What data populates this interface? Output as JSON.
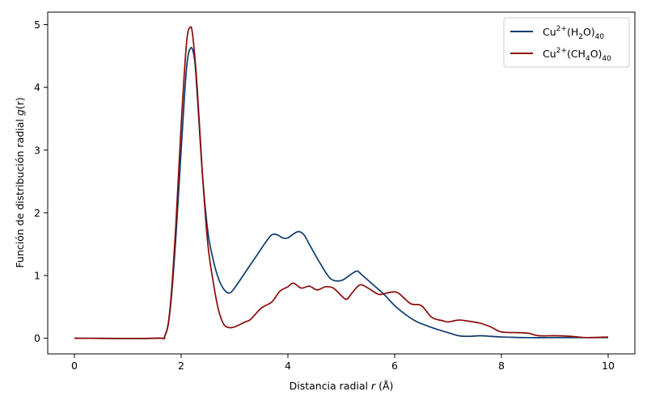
{
  "chart_data": {
    "type": "line",
    "xlabel_text": "Distancia radial ",
    "xlabel_var": "r",
    "xlabel_unit": " (Å)",
    "ylabel_text": "Función de distribución radial ",
    "ylabel_var": "g",
    "ylabel_arg": "(r)",
    "xlim": [
      -0.5,
      10.5
    ],
    "ylim": [
      -0.25,
      5.2
    ],
    "xticks": [
      0,
      2,
      4,
      6,
      8,
      10
    ],
    "yticks": [
      0,
      1,
      2,
      3,
      4,
      5
    ],
    "grid": false,
    "legend_position": "top-right",
    "series": [
      {
        "name": "Cu2+(H2O)40",
        "legend_base": "Cu",
        "legend_sup": "2+",
        "legend_mid": "(H",
        "legend_sub1": "2",
        "legend_mid2": "O)",
        "legend_sub2": "40",
        "legend_mid3": "",
        "legend_sub3": "",
        "color": "#0d3b6e",
        "points": [
          [
            0,
            0
          ],
          [
            1.5,
            0
          ],
          [
            1.7,
            0.05
          ],
          [
            1.8,
            0.5
          ],
          [
            1.9,
            1.6
          ],
          [
            2.0,
            3.0
          ],
          [
            2.1,
            4.3
          ],
          [
            2.18,
            4.63
          ],
          [
            2.25,
            4.45
          ],
          [
            2.3,
            3.9
          ],
          [
            2.4,
            2.6
          ],
          [
            2.5,
            1.7
          ],
          [
            2.6,
            1.25
          ],
          [
            2.7,
            0.95
          ],
          [
            2.8,
            0.78
          ],
          [
            2.9,
            0.72
          ],
          [
            3.0,
            0.8
          ],
          [
            3.2,
            1.05
          ],
          [
            3.4,
            1.3
          ],
          [
            3.6,
            1.55
          ],
          [
            3.7,
            1.65
          ],
          [
            3.8,
            1.65
          ],
          [
            3.9,
            1.6
          ],
          [
            4.0,
            1.6
          ],
          [
            4.1,
            1.66
          ],
          [
            4.2,
            1.7
          ],
          [
            4.3,
            1.65
          ],
          [
            4.4,
            1.5
          ],
          [
            4.6,
            1.2
          ],
          [
            4.8,
            0.95
          ],
          [
            5.0,
            0.92
          ],
          [
            5.2,
            1.03
          ],
          [
            5.3,
            1.07
          ],
          [
            5.4,
            1.0
          ],
          [
            5.6,
            0.85
          ],
          [
            5.8,
            0.7
          ],
          [
            6.0,
            0.52
          ],
          [
            6.2,
            0.38
          ],
          [
            6.4,
            0.27
          ],
          [
            6.6,
            0.2
          ],
          [
            6.8,
            0.14
          ],
          [
            7.0,
            0.09
          ],
          [
            7.2,
            0.04
          ],
          [
            7.4,
            0.03
          ],
          [
            7.6,
            0.04
          ],
          [
            7.8,
            0.03
          ],
          [
            8.0,
            0.02
          ],
          [
            8.5,
            0.01
          ],
          [
            9.0,
            0.01
          ],
          [
            10.0,
            0.01
          ]
        ]
      },
      {
        "name": "Cu2+(CH4O)40",
        "legend_base": "Cu",
        "legend_sup": "2+",
        "legend_mid": "(CH",
        "legend_sub1": "4",
        "legend_mid2": "O)",
        "legend_sub2": "40",
        "legend_mid3": "",
        "legend_sub3": "",
        "color": "#8b0a0a",
        "points": [
          [
            0,
            0
          ],
          [
            1.5,
            0
          ],
          [
            1.7,
            0.05
          ],
          [
            1.8,
            0.55
          ],
          [
            1.9,
            1.8
          ],
          [
            2.0,
            3.4
          ],
          [
            2.1,
            4.7
          ],
          [
            2.17,
            4.96
          ],
          [
            2.22,
            4.8
          ],
          [
            2.3,
            4.0
          ],
          [
            2.4,
            2.6
          ],
          [
            2.5,
            1.5
          ],
          [
            2.6,
            0.9
          ],
          [
            2.7,
            0.45
          ],
          [
            2.8,
            0.22
          ],
          [
            2.9,
            0.17
          ],
          [
            3.0,
            0.18
          ],
          [
            3.2,
            0.26
          ],
          [
            3.3,
            0.3
          ],
          [
            3.5,
            0.48
          ],
          [
            3.7,
            0.58
          ],
          [
            3.85,
            0.75
          ],
          [
            4.0,
            0.82
          ],
          [
            4.1,
            0.88
          ],
          [
            4.25,
            0.8
          ],
          [
            4.4,
            0.83
          ],
          [
            4.55,
            0.77
          ],
          [
            4.7,
            0.82
          ],
          [
            4.85,
            0.8
          ],
          [
            5.0,
            0.68
          ],
          [
            5.1,
            0.62
          ],
          [
            5.2,
            0.72
          ],
          [
            5.35,
            0.85
          ],
          [
            5.5,
            0.8
          ],
          [
            5.7,
            0.7
          ],
          [
            5.85,
            0.72
          ],
          [
            6.0,
            0.74
          ],
          [
            6.1,
            0.7
          ],
          [
            6.3,
            0.55
          ],
          [
            6.5,
            0.52
          ],
          [
            6.7,
            0.33
          ],
          [
            6.9,
            0.28
          ],
          [
            7.0,
            0.26
          ],
          [
            7.2,
            0.29
          ],
          [
            7.4,
            0.27
          ],
          [
            7.6,
            0.24
          ],
          [
            7.8,
            0.18
          ],
          [
            8.0,
            0.1
          ],
          [
            8.3,
            0.09
          ],
          [
            8.5,
            0.08
          ],
          [
            8.7,
            0.04
          ],
          [
            9.0,
            0.04
          ],
          [
            9.3,
            0.03
          ],
          [
            9.6,
            0.01
          ],
          [
            10.0,
            0.02
          ]
        ]
      }
    ]
  }
}
